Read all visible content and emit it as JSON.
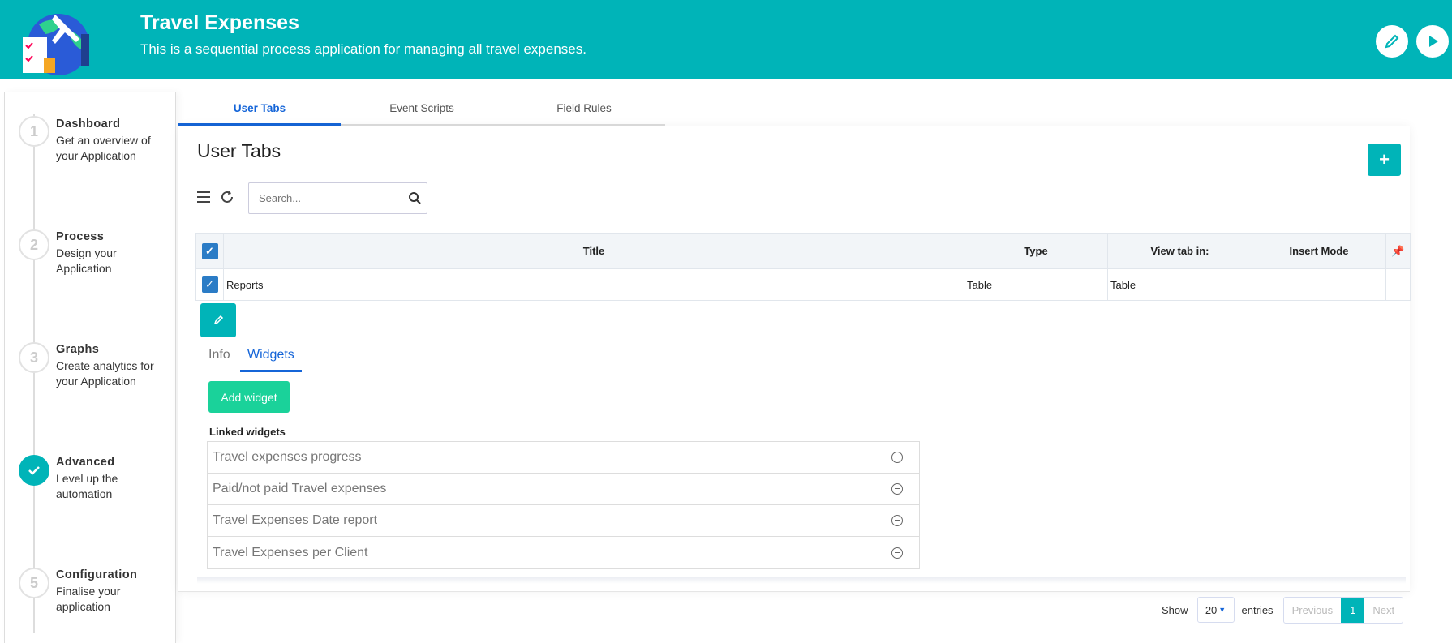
{
  "header": {
    "title": "Travel Expenses",
    "subtitle": "This is a sequential process application for managing all travel expenses.",
    "edit_icon": "pencil-icon",
    "run_icon": "play-icon",
    "color": "#00B4B8"
  },
  "steps": [
    {
      "number": "1",
      "title": "Dashboard",
      "description": "Get an overview of your Application",
      "done": false
    },
    {
      "number": "2",
      "title": "Process",
      "description": "Design your Application",
      "done": false
    },
    {
      "number": "3",
      "title": "Graphs",
      "description": "Create analytics for your Application",
      "done": false
    },
    {
      "number": "4",
      "title": "Advanced",
      "description": "Level up the automation",
      "done": true
    },
    {
      "number": "5",
      "title": "Configuration",
      "description": "Finalise your application",
      "done": false
    }
  ],
  "tabs": [
    {
      "label": "User Tabs",
      "active": true
    },
    {
      "label": "Event Scripts"
    },
    {
      "label": "Field Rules"
    }
  ],
  "main": {
    "heading": "User Tabs",
    "add_label": "+",
    "search_placeholder": "Search...",
    "columns": [
      "Title",
      "Type",
      "View tab in:",
      "Insert Mode"
    ],
    "rows": [
      {
        "title": "Reports",
        "type": "Table",
        "view_in": "Table",
        "insert_mode": "",
        "checked": true
      }
    ],
    "detail": {
      "subtabs": [
        "Info",
        "Widgets"
      ],
      "active_subtab": "Widgets",
      "add_widget": "Add widget",
      "linked_label": "Linked widgets",
      "widgets": [
        "Travel expenses progress",
        "Paid/not paid Travel expenses",
        "Travel Expenses Date report",
        "Travel Expenses per Client"
      ]
    }
  },
  "pagination": {
    "show": "Show",
    "page_size": "20",
    "entries": "entries",
    "previous": "Previous",
    "current": "1",
    "next": "Next"
  }
}
